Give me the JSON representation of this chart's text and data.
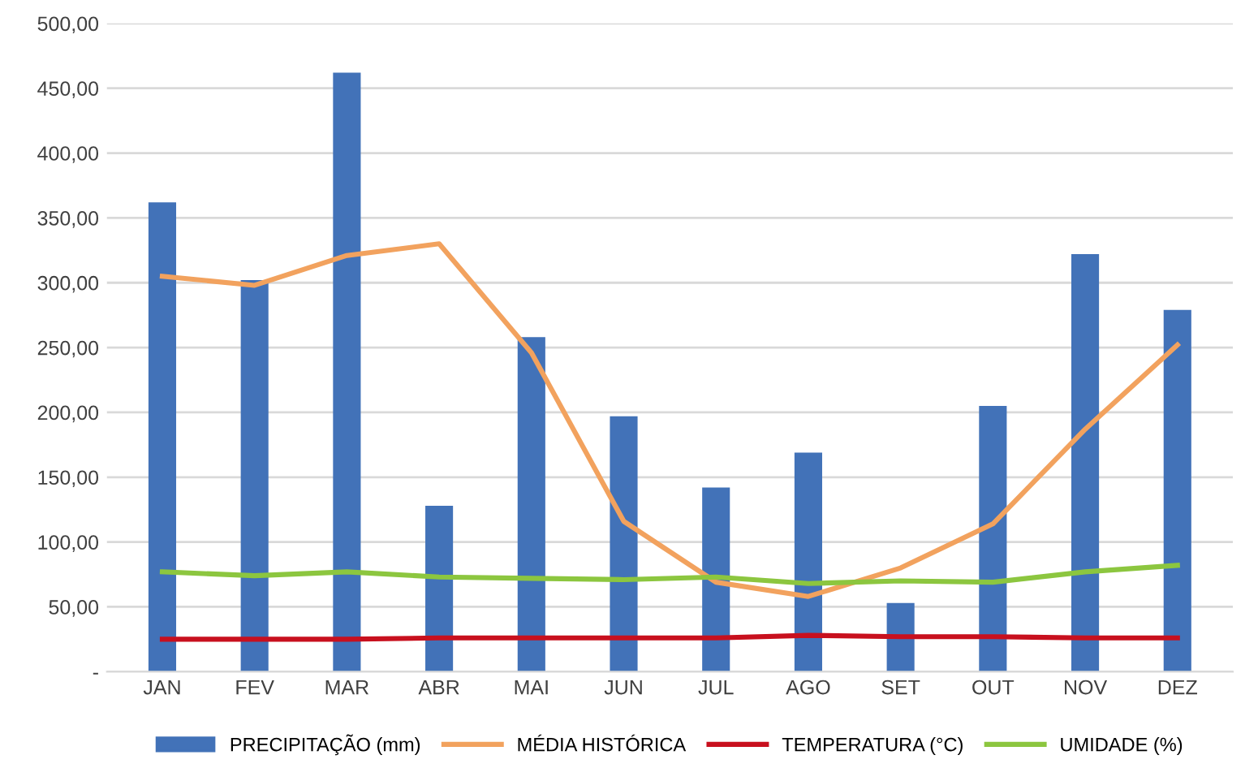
{
  "chart_data": {
    "type": "bar",
    "categories": [
      "JAN",
      "FEV",
      "MAR",
      "ABR",
      "MAI",
      "JUN",
      "JUL",
      "AGO",
      "SET",
      "OUT",
      "NOV",
      "DEZ"
    ],
    "series": [
      {
        "name": "PRECIPITAÇÃO (mm)",
        "color": "#4272b8",
        "values": [
          362,
          302,
          462,
          128,
          258,
          197,
          142,
          169,
          53,
          205,
          322,
          279
        ]
      },
      {
        "name": "MÉDIA HISTÓRICA",
        "type": "line",
        "color": "#f2a25e",
        "values": [
          305,
          298,
          321,
          330,
          246,
          116,
          69,
          58,
          80,
          114,
          187,
          252
        ]
      },
      {
        "name": "TEMPERATURA (°C)",
        "type": "line",
        "color": "#c8101e",
        "values": [
          25,
          25,
          25,
          26,
          26,
          26,
          26,
          28,
          27,
          27,
          26,
          26
        ]
      },
      {
        "name": "UMIDADE (%)",
        "type": "line",
        "color": "#8cc63f",
        "values": [
          77,
          74,
          77,
          73,
          72,
          71,
          73,
          68,
          70,
          69,
          77,
          82
        ]
      }
    ],
    "ylim": [
      0,
      500
    ],
    "yticks": [
      {
        "value": 0,
        "label": "-"
      },
      {
        "value": 50,
        "label": "50,00"
      },
      {
        "value": 100,
        "label": "100,00"
      },
      {
        "value": 150,
        "label": "150,00"
      },
      {
        "value": 200,
        "label": "200,00"
      },
      {
        "value": 250,
        "label": "250,00"
      },
      {
        "value": 300,
        "label": "300,00"
      },
      {
        "value": 350,
        "label": "350,00"
      },
      {
        "value": 400,
        "label": "400,00"
      },
      {
        "value": 450,
        "label": "450,00"
      },
      {
        "value": 500,
        "label": "500,00"
      }
    ],
    "grid": "y",
    "legend": "bottom",
    "marker": "none",
    "line_style": "solid"
  }
}
